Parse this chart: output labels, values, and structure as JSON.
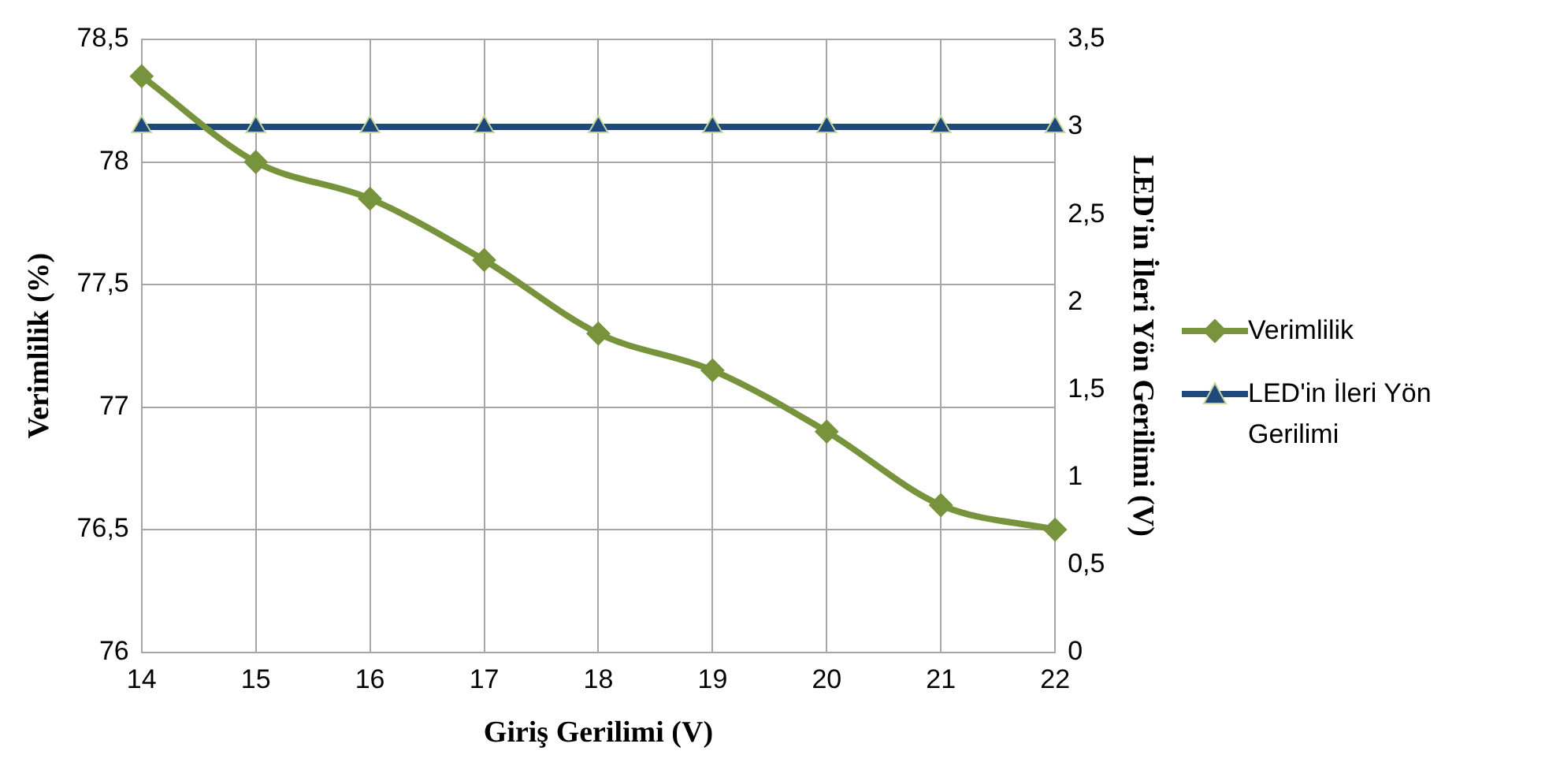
{
  "chart_data": {
    "type": "line",
    "xlabel": "Giriş Gerilimi (V)",
    "ylabel": "Verimlilik (%)",
    "y2label": "LED'in İleri Yön Gerilimi (V)",
    "categories": [
      "14",
      "15",
      "16",
      "17",
      "18",
      "19",
      "20",
      "21",
      "22"
    ],
    "series": [
      {
        "name": "Verimlilik",
        "color": "#77933c",
        "marker": "diamond",
        "values": [
          78.35,
          78,
          77.85,
          77.6,
          77.3,
          77.15,
          76.9,
          76.6,
          76.5
        ]
      },
      {
        "name": "LED'in İleri Yön Gerilimi",
        "color": "#1f497d",
        "marker": "triangle",
        "axis": "y2",
        "values": [
          3,
          3,
          3,
          3,
          3,
          3,
          3,
          3,
          3
        ]
      }
    ],
    "ylim": [
      76,
      78.5
    ],
    "yticks": [
      76,
      {
        "value": 76.5,
        "label": "76,5"
      },
      77,
      {
        "value": 77.5,
        "label": "77,5"
      },
      78,
      {
        "value": 78.5,
        "label": "78,5"
      }
    ],
    "y2lim": [
      0,
      3.5
    ],
    "y2ticks": [
      0,
      {
        "value": 0.5,
        "label": "0,5"
      },
      1,
      {
        "value": 1.5,
        "label": "1,5"
      },
      2,
      {
        "value": 2.5,
        "label": "2,5"
      },
      3,
      {
        "value": 3.5,
        "label": "3,5"
      }
    ],
    "grid": true,
    "legend": "right"
  }
}
